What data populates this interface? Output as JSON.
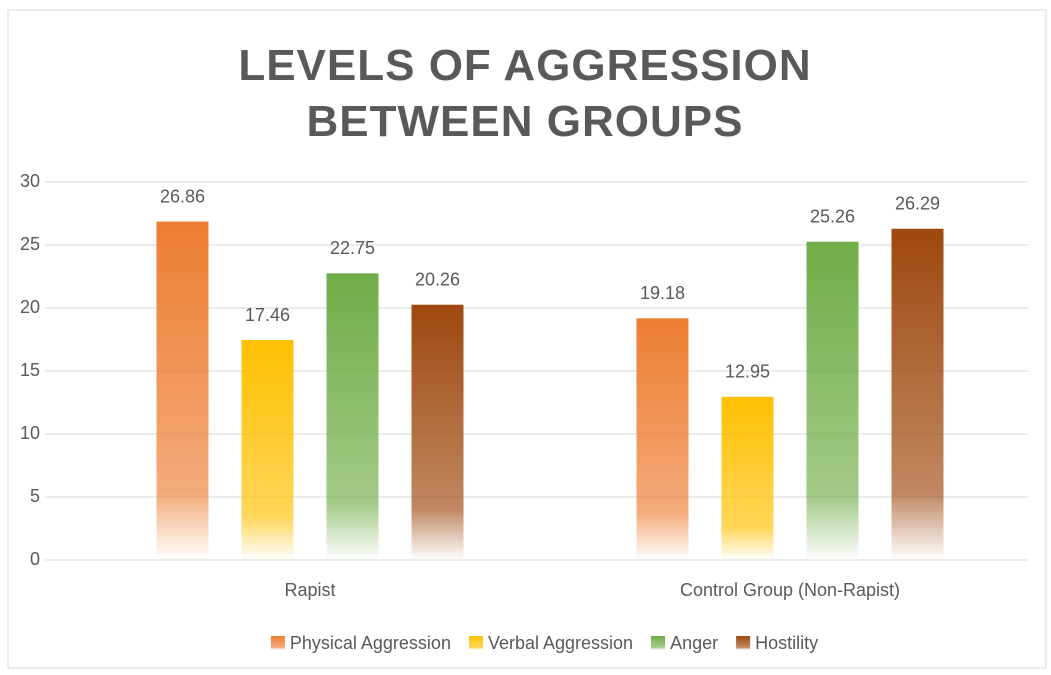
{
  "chart_data": {
    "type": "bar",
    "title": "LEVELS OF AGGRESSION BETWEEN GROUPS",
    "categories": [
      "Rapist",
      "Control Group (Non-Rapist)"
    ],
    "series": [
      {
        "name": "Physical Aggression",
        "color": "#ED7D31",
        "values": [
          26.86,
          19.18
        ]
      },
      {
        "name": "Verbal Aggression",
        "color": "#FFC000",
        "values": [
          17.46,
          12.95
        ]
      },
      {
        "name": "Anger",
        "color": "#70AD47",
        "values": [
          22.75,
          25.26
        ]
      },
      {
        "name": "Hostility",
        "color": "#9E480E",
        "values": [
          20.26,
          26.29
        ]
      }
    ],
    "ylim": [
      0,
      30
    ],
    "yticks": [
      0,
      5,
      10,
      15,
      20,
      25,
      30
    ],
    "grid": true,
    "legend": "bottom"
  }
}
